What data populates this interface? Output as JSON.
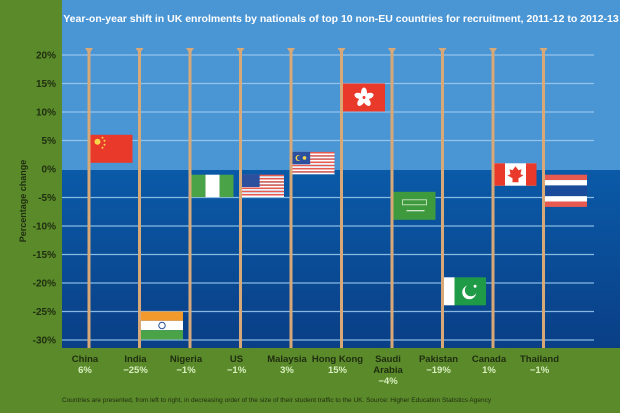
{
  "chart_data": {
    "type": "bar",
    "title": "Year-on-year shift in UK enrolments by nationals of top 10 non-EU countries for recruitment, 2011-12 to 2012-13",
    "ylabel": "Percentage change",
    "xlabel": "",
    "ylim": [
      -30,
      20
    ],
    "yticks": [
      20,
      15,
      10,
      5,
      0,
      -5,
      -10,
      -15,
      -20,
      -25,
      -30
    ],
    "ytick_labels": [
      "20%",
      "15%",
      "10%",
      "5%",
      "0%",
      "-5%",
      "-10%",
      "-15%",
      "-20%",
      "-25%",
      "-30%"
    ],
    "grid": true,
    "categories": [
      "China",
      "India",
      "Nigeria",
      "US",
      "Malaysia",
      "Hong Kong",
      "Saudi Arabia",
      "Pakistan",
      "Canada",
      "Thailand"
    ],
    "category_lines": [
      [
        "China"
      ],
      [
        "India"
      ],
      [
        "Nigeria"
      ],
      [
        "US"
      ],
      [
        "Malaysia"
      ],
      [
        "Hong Kong"
      ],
      [
        "Saudi",
        "Arabia"
      ],
      [
        "Pakistan"
      ],
      [
        "Canada"
      ],
      [
        "Thailand"
      ]
    ],
    "values": [
      6,
      -25,
      -1,
      -1,
      3,
      15,
      -4,
      -19,
      1,
      -1
    ],
    "value_labels": [
      "6%",
      "−25%",
      "−1%",
      "−1%",
      "3%",
      "15%",
      "−4%",
      "−19%",
      "1%",
      "−1%"
    ],
    "flags": [
      "china-flag",
      "india-flag",
      "nigeria-flag",
      "us-flag",
      "malaysia-flag",
      "hong-kong-flag",
      "saudi-arabia-flag",
      "pakistan-flag",
      "canada-flag",
      "thailand-flag"
    ],
    "footnote": "Countries are presented, from left to right, in decreasing order of the size of their student traffic to the UK. Source: Higher Education Statistics Agency"
  },
  "colors": {
    "background": "#5a8a2a",
    "sky": "#4a95d4",
    "sea_top": "#0a5aa8",
    "sea_bottom": "#0a3f86",
    "pole": "#d9a877",
    "grid": "#9fcdf0"
  }
}
